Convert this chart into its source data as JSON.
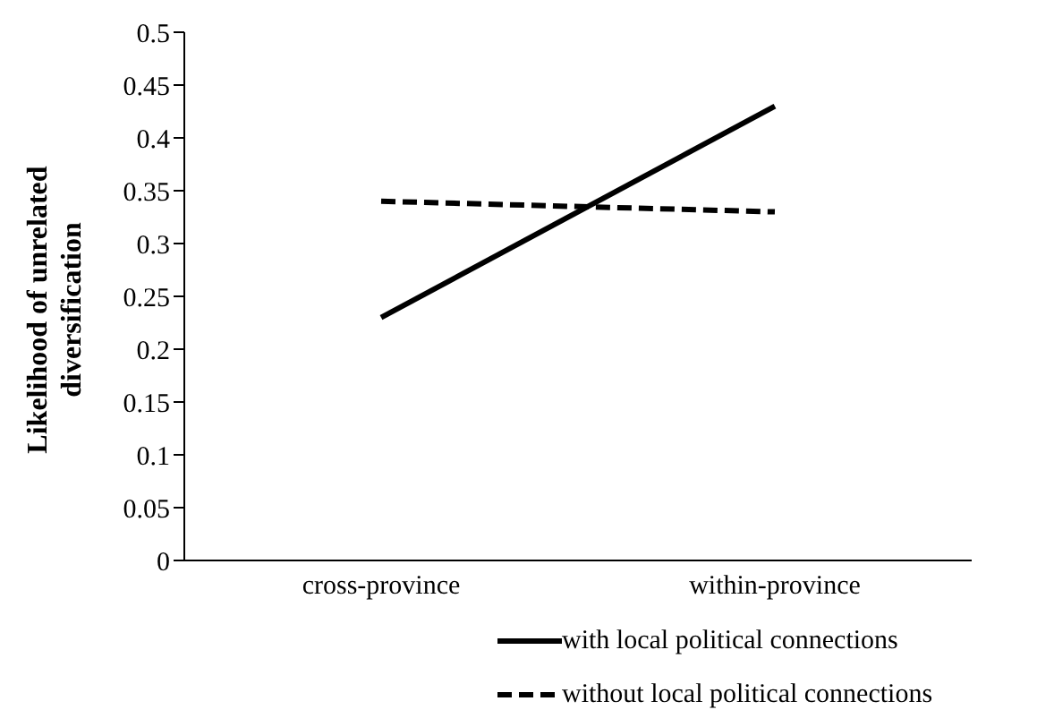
{
  "chart_data": {
    "type": "line",
    "ylabel": "Likelihood of unrelated diversification",
    "categories": [
      "cross-province",
      "within-province"
    ],
    "series": [
      {
        "name": "with local political connections",
        "color": "#000000",
        "values": [
          0.23,
          0.43
        ],
        "line_style": "solid"
      },
      {
        "name": "without local political connections",
        "color": "#000000",
        "values": [
          0.34,
          0.33
        ],
        "line_style": "dashed"
      }
    ],
    "ylim": [
      0,
      0.5
    ],
    "yticks": [
      0,
      0.05,
      0.1,
      0.15,
      0.2,
      0.25,
      0.3,
      0.35,
      0.4,
      0.45,
      0.5
    ],
    "grid": false,
    "legend": "bottom",
    "marker": "none"
  }
}
